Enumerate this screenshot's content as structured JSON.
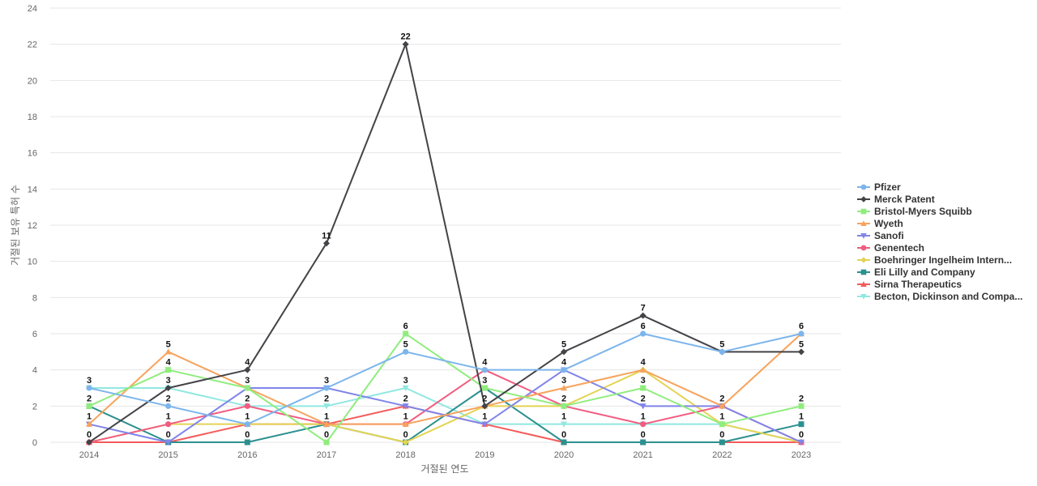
{
  "chart_data": {
    "type": "line",
    "xlabel": "거절된 연도",
    "ylabel": "거절된 보유 특허 수",
    "categories": [
      "2014",
      "2015",
      "2016",
      "2017",
      "2018",
      "2019",
      "2020",
      "2021",
      "2022",
      "2023"
    ],
    "ylim": [
      0,
      24
    ],
    "yticks": [
      0,
      2,
      4,
      6,
      8,
      10,
      12,
      14,
      16,
      18,
      20,
      22,
      24
    ],
    "grid": true,
    "legend_position": "right",
    "series": [
      {
        "name": "Pfizer",
        "color": "#7cb5ec",
        "marker": "circle",
        "values": [
          3,
          2,
          1,
          3,
          5,
          4,
          4,
          6,
          5,
          6
        ]
      },
      {
        "name": "Merck Patent",
        "color": "#434348",
        "marker": "diamond",
        "values": [
          0,
          3,
          4,
          11,
          22,
          2,
          5,
          7,
          5,
          5
        ]
      },
      {
        "name": "Bristol-Myers Squibb",
        "color": "#90ed7d",
        "marker": "square",
        "values": [
          2,
          4,
          3,
          0,
          6,
          3,
          2,
          3,
          1,
          2
        ]
      },
      {
        "name": "Wyeth",
        "color": "#f7a35c",
        "marker": "triangle",
        "values": [
          1,
          5,
          3,
          1,
          1,
          2,
          3,
          4,
          2,
          6
        ]
      },
      {
        "name": "Sanofi",
        "color": "#8085e9",
        "marker": "triangle-down",
        "values": [
          1,
          0,
          3,
          3,
          2,
          1,
          4,
          2,
          2,
          0
        ]
      },
      {
        "name": "Genentech",
        "color": "#f15c80",
        "marker": "circle",
        "values": [
          0,
          1,
          2,
          1,
          1,
          4,
          2,
          1,
          2,
          0
        ]
      },
      {
        "name": "Boehringer Ingelheim Intern...",
        "color": "#e4d354",
        "marker": "diamond",
        "values": [
          0,
          1,
          1,
          1,
          0,
          2,
          2,
          4,
          1,
          0
        ]
      },
      {
        "name": "Eli Lilly and Company",
        "color": "#2b908f",
        "marker": "square",
        "values": [
          2,
          0,
          0,
          1,
          0,
          3,
          0,
          0,
          0,
          1
        ]
      },
      {
        "name": "Sirna Therapeutics",
        "color": "#f45b5b",
        "marker": "triangle",
        "values": [
          0,
          0,
          1,
          1,
          2,
          1,
          0,
          0,
          0,
          0
        ]
      },
      {
        "name": "Becton, Dickinson and Compa...",
        "color": "#91e8e1",
        "marker": "triangle-down",
        "values": [
          3,
          3,
          2,
          2,
          3,
          1,
          1,
          1,
          1,
          0
        ]
      }
    ]
  },
  "data_labels": [
    {
      "year": "2014",
      "labels": [
        "3",
        "2",
        "1",
        "0"
      ]
    },
    {
      "year": "2015",
      "labels": [
        "5",
        "4",
        "3",
        "2",
        "1",
        "0"
      ]
    },
    {
      "year": "2016",
      "labels": [
        "4",
        "3",
        "2",
        "1",
        "0"
      ]
    },
    {
      "year": "2017",
      "labels": [
        "11",
        "3",
        "2",
        "1",
        "0"
      ]
    },
    {
      "year": "2018",
      "labels": [
        "22",
        "6",
        "5",
        "3",
        "2",
        "1",
        "0"
      ]
    },
    {
      "year": "2019",
      "labels": [
        "4",
        "3",
        "2",
        "1"
      ]
    },
    {
      "year": "2020",
      "labels": [
        "5",
        "4",
        "3",
        "2",
        "1",
        "0"
      ]
    },
    {
      "year": "2021",
      "labels": [
        "7",
        "6",
        "4",
        "3",
        "2",
        "1",
        "0"
      ]
    },
    {
      "year": "2022",
      "labels": [
        "5",
        "2",
        "1",
        "0"
      ]
    },
    {
      "year": "2023",
      "labels": [
        "6",
        "5",
        "2",
        "1",
        "0"
      ]
    }
  ]
}
